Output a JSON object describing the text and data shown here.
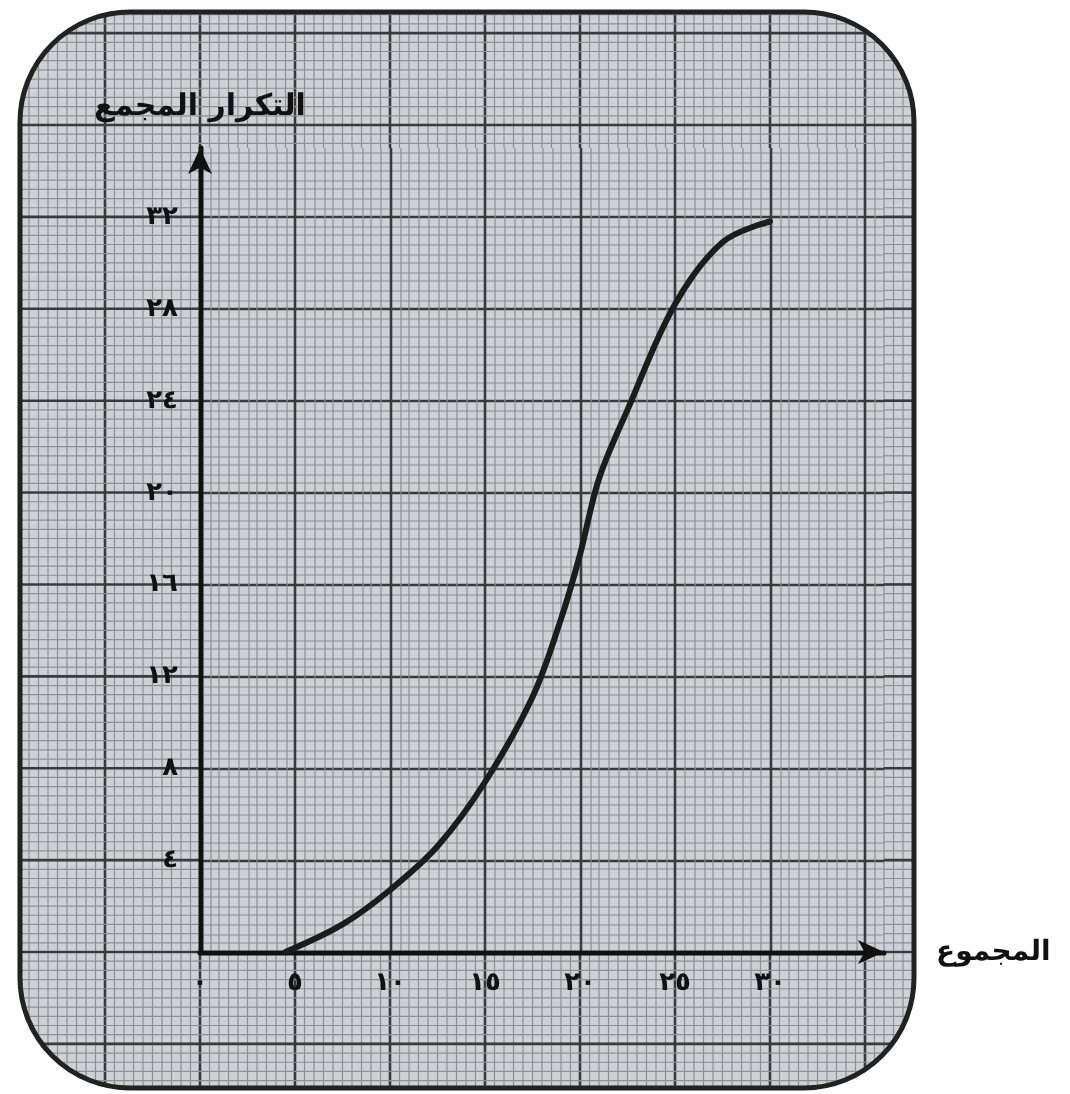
{
  "chart_data": {
    "type": "line",
    "xlabel": "المجموع",
    "ylabel": "التكرار المجمع",
    "x": [
      4.5,
      7.5,
      10,
      12.5,
      15,
      17.5,
      19,
      20,
      21,
      22.5,
      25,
      27.5,
      30
    ],
    "values": [
      0,
      1.2,
      2.7,
      4.6,
      7.4,
      11.1,
      14.5,
      17.3,
      20.6,
      23.6,
      28.2,
      30.9,
      31.8
    ],
    "color": "#1c1c1c",
    "marker": "none",
    "grid": true,
    "xlim": [
      0,
      36
    ],
    "ylim": [
      0,
      35
    ],
    "xticks": [
      {
        "value": 0,
        "label": "٠"
      },
      {
        "value": 5,
        "label": "٥"
      },
      {
        "value": 10,
        "label": "١٠"
      },
      {
        "value": 15,
        "label": "١٥"
      },
      {
        "value": 20,
        "label": "٢٠"
      },
      {
        "value": 25,
        "label": "٢٥"
      },
      {
        "value": 30,
        "label": "٣٠"
      }
    ],
    "yticks": [
      {
        "value": 4,
        "label": "٤"
      },
      {
        "value": 8,
        "label": "٨"
      },
      {
        "value": 12,
        "label": "١٢"
      },
      {
        "value": 16,
        "label": "١٦"
      },
      {
        "value": 20,
        "label": "٢٠"
      },
      {
        "value": 24,
        "label": "٢٤"
      },
      {
        "value": 28,
        "label": "٢٨"
      },
      {
        "value": 32,
        "label": "٣٢"
      }
    ]
  }
}
